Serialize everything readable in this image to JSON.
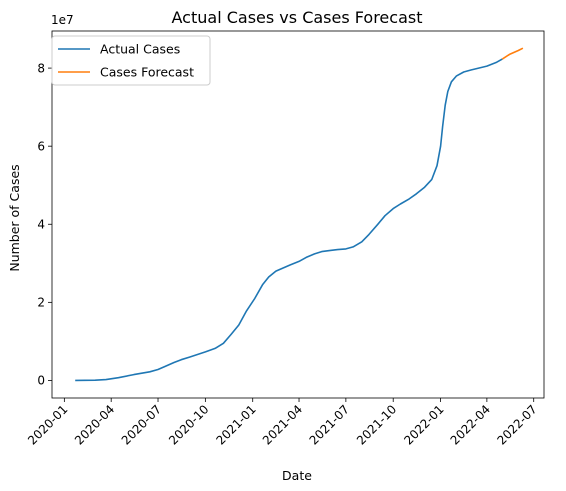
{
  "chart_data": {
    "type": "line",
    "title": "Actual Cases vs Cases Forecast",
    "xlabel": "Date",
    "ylabel": "Number of Cases",
    "y_offset_label": "1e7",
    "xlim": [
      "2019-12-08",
      "2022-07-21"
    ],
    "ylim": [
      -4500000,
      89500000
    ],
    "x_ticks": [
      "2020-01",
      "2020-04",
      "2020-07",
      "2020-10",
      "2021-01",
      "2021-04",
      "2021-07",
      "2021-10",
      "2022-01",
      "2022-04",
      "2022-07"
    ],
    "y_ticks": [
      {
        "value": 0,
        "label": "0"
      },
      {
        "value": 20000000,
        "label": "2"
      },
      {
        "value": 40000000,
        "label": "4"
      },
      {
        "value": 60000000,
        "label": "6"
      },
      {
        "value": 80000000,
        "label": "8"
      }
    ],
    "grid": false,
    "legend_position": "top-left",
    "series": [
      {
        "name": "Actual Cases",
        "color": "#1f77b4",
        "points": [
          [
            "2020-01-22",
            0
          ],
          [
            "2020-03-01",
            70000
          ],
          [
            "2020-03-22",
            200000
          ],
          [
            "2020-04-15",
            700000
          ],
          [
            "2020-05-15",
            1500000
          ],
          [
            "2020-06-15",
            2200000
          ],
          [
            "2020-07-01",
            2800000
          ],
          [
            "2020-07-15",
            3600000
          ],
          [
            "2020-08-01",
            4600000
          ],
          [
            "2020-08-15",
            5300000
          ],
          [
            "2020-09-01",
            6000000
          ],
          [
            "2020-10-01",
            7300000
          ],
          [
            "2020-10-20",
            8200000
          ],
          [
            "2020-11-05",
            9500000
          ],
          [
            "2020-11-20",
            11800000
          ],
          [
            "2020-12-05",
            14200000
          ],
          [
            "2020-12-20",
            17800000
          ],
          [
            "2021-01-05",
            21000000
          ],
          [
            "2021-01-20",
            24500000
          ],
          [
            "2021-02-01",
            26500000
          ],
          [
            "2021-02-15",
            28000000
          ],
          [
            "2021-03-01",
            28800000
          ],
          [
            "2021-03-15",
            29600000
          ],
          [
            "2021-04-01",
            30500000
          ],
          [
            "2021-04-15",
            31500000
          ],
          [
            "2021-05-01",
            32400000
          ],
          [
            "2021-05-15",
            33000000
          ],
          [
            "2021-06-01",
            33300000
          ],
          [
            "2021-06-15",
            33500000
          ],
          [
            "2021-07-01",
            33700000
          ],
          [
            "2021-07-15",
            34200000
          ],
          [
            "2021-08-01",
            35500000
          ],
          [
            "2021-08-15",
            37400000
          ],
          [
            "2021-09-01",
            40000000
          ],
          [
            "2021-09-15",
            42200000
          ],
          [
            "2021-10-01",
            44000000
          ],
          [
            "2021-10-15",
            45200000
          ],
          [
            "2021-11-01",
            46500000
          ],
          [
            "2021-11-15",
            47800000
          ],
          [
            "2021-12-01",
            49500000
          ],
          [
            "2021-12-15",
            51500000
          ],
          [
            "2021-12-25",
            55000000
          ],
          [
            "2022-01-01",
            60000000
          ],
          [
            "2022-01-05",
            65000000
          ],
          [
            "2022-01-10",
            70500000
          ],
          [
            "2022-01-15",
            74000000
          ],
          [
            "2022-01-22",
            76500000
          ],
          [
            "2022-02-01",
            78000000
          ],
          [
            "2022-02-15",
            79000000
          ],
          [
            "2022-03-01",
            79500000
          ],
          [
            "2022-04-01",
            80500000
          ],
          [
            "2022-04-20",
            81500000
          ],
          [
            "2022-05-01",
            82300000
          ]
        ]
      },
      {
        "name": "Cases Forecast",
        "color": "#ff7f0e",
        "points": [
          [
            "2022-05-01",
            82300000
          ],
          [
            "2022-05-15",
            83500000
          ],
          [
            "2022-06-01",
            84500000
          ],
          [
            "2022-06-10",
            85100000
          ]
        ]
      }
    ]
  }
}
